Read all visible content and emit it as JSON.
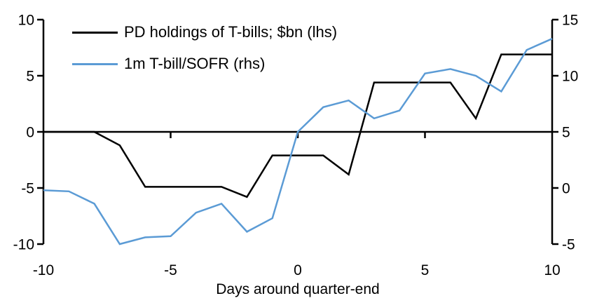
{
  "chart_data": {
    "type": "line",
    "title": "",
    "xlabel": "Days around quarter-end",
    "x_range": [
      -10,
      10
    ],
    "x_ticks": [
      -10,
      -5,
      0,
      5,
      10
    ],
    "left_axis": {
      "min": -10,
      "max": 10,
      "ticks": [
        10,
        5,
        0,
        -5,
        -10
      ]
    },
    "right_axis": {
      "min": -5,
      "max": 15,
      "ticks": [
        15,
        10,
        5,
        0,
        -5
      ]
    },
    "grid": false,
    "legend_position": "top-left",
    "axis_color": "#000000",
    "x": [
      -10,
      -9,
      -8,
      -7,
      -6,
      -5,
      -4,
      -3,
      -2,
      -1,
      0,
      1,
      2,
      3,
      4,
      5,
      6,
      7,
      8,
      9,
      10
    ],
    "series": [
      {
        "name": "PD holdings of T-bills; $bn (lhs)",
        "axis": "left",
        "color": "#000000",
        "values": [
          0,
          0,
          0,
          -1.2,
          -4.9,
          -4.9,
          -4.9,
          -4.9,
          -5.8,
          -2.1,
          -2.1,
          -2.1,
          -3.8,
          4.4,
          4.4,
          4.4,
          4.4,
          1.2,
          6.9,
          6.9,
          6.9
        ]
      },
      {
        "name": "1m T-bill/SOFR (rhs)",
        "axis": "right",
        "color": "#5B9BD5",
        "values": [
          -0.2,
          -0.3,
          -1.4,
          -5.0,
          -4.4,
          -4.3,
          -2.2,
          -1.4,
          -3.9,
          -2.7,
          5.0,
          7.2,
          7.8,
          6.2,
          6.9,
          10.2,
          10.6,
          10.0,
          8.6,
          12.3,
          13.3
        ]
      }
    ]
  }
}
